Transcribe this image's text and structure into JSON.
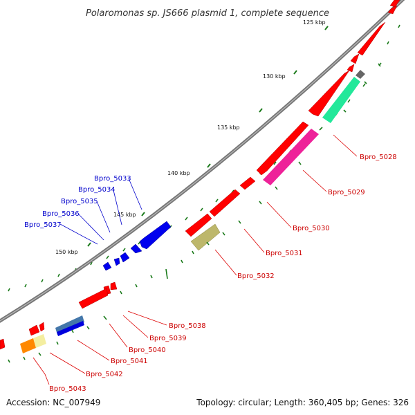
{
  "title": "Polaromonas sp. JS666 plasmid 1, complete sequence",
  "footer": {
    "accession": "Accession: NC_007949",
    "summary": "Topology: circular; Length: 360,405 bp; Genes: 326"
  },
  "scale_labels": [
    "125 kbp",
    "130 kbp",
    "135 kbp",
    "140 kbp",
    "145 kbp",
    "150 kbp"
  ],
  "colors": {
    "backbone": "#777777",
    "forward_genes": "#ff0000",
    "reverse_genes": "#0000ee",
    "label_forward": "#cc0000",
    "label_reverse": "#0000cc",
    "ticks": "#1a7a1a"
  },
  "gene_labels_forward": [
    "Bpro_5028",
    "Bpro_5029",
    "Bpro_5030",
    "Bpro_5031",
    "Bpro_5032",
    "Bpro_5038",
    "Bpro_5039",
    "Bpro_5040",
    "Bpro_5041",
    "Bpro_5042",
    "Bpro_5043"
  ],
  "gene_labels_reverse": [
    "Bpro_5033",
    "Bpro_5034",
    "Bpro_5035",
    "Bpro_5036",
    "Bpro_5037"
  ]
}
